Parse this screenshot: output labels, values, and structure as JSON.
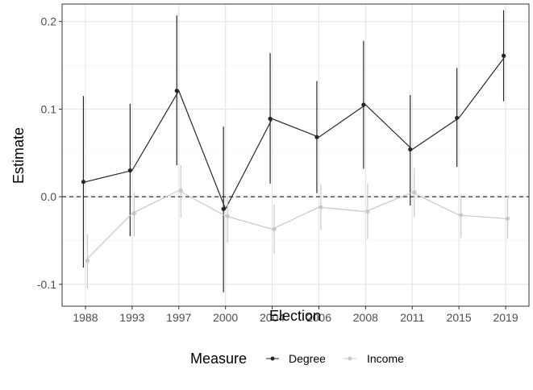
{
  "chart_data": {
    "type": "line",
    "x_type": "categorical",
    "categories": [
      "1988",
      "1993",
      "1997",
      "2000",
      "2004",
      "2006",
      "2008",
      "2011",
      "2015",
      "2019"
    ],
    "xlabel": "Election",
    "ylabel": "Estimate",
    "ylim": [
      -0.125,
      0.22
    ],
    "yticks": [
      -0.1,
      0.0,
      0.1,
      0.2
    ],
    "ytick_labels": [
      "-0.1",
      "0.0",
      "0.1",
      "0.2"
    ],
    "reference_line": {
      "y": 0.0,
      "style": "dashed"
    },
    "grid": true,
    "legend": {
      "title": "Measure",
      "position": "bottom"
    },
    "series": [
      {
        "name": "Degree",
        "color": "#262626",
        "points": [
          0.017,
          0.03,
          0.121,
          -0.014,
          0.089,
          0.068,
          0.105,
          0.054,
          0.09,
          0.161
        ],
        "ci_low": [
          -0.081,
          -0.045,
          0.036,
          -0.109,
          0.015,
          0.004,
          0.032,
          -0.01,
          0.034,
          0.109
        ],
        "ci_high": [
          0.115,
          0.106,
          0.207,
          0.08,
          0.164,
          0.132,
          0.178,
          0.116,
          0.147,
          0.213
        ],
        "line": [
          0.017,
          0.03,
          0.121,
          -0.014,
          0.089,
          0.068,
          0.105,
          0.054,
          0.09,
          0.161
        ]
      },
      {
        "name": "Income",
        "color": "#c8c8c8",
        "points": [
          -0.073,
          -0.019,
          0.007,
          -0.022,
          -0.037,
          -0.012,
          -0.017,
          0.005,
          -0.021,
          -0.025
        ],
        "ci_low": [
          -0.105,
          -0.045,
          -0.024,
          -0.053,
          -0.065,
          -0.038,
          -0.049,
          -0.023,
          -0.047,
          -0.048
        ],
        "ci_high": [
          -0.043,
          0.005,
          0.036,
          0.001,
          -0.009,
          0.014,
          0.015,
          0.033,
          0.003,
          0.002
        ],
        "line": [
          -0.073,
          -0.019,
          0.007,
          -0.022,
          -0.037,
          -0.012,
          -0.017,
          0.005,
          -0.021,
          -0.025
        ]
      }
    ]
  }
}
